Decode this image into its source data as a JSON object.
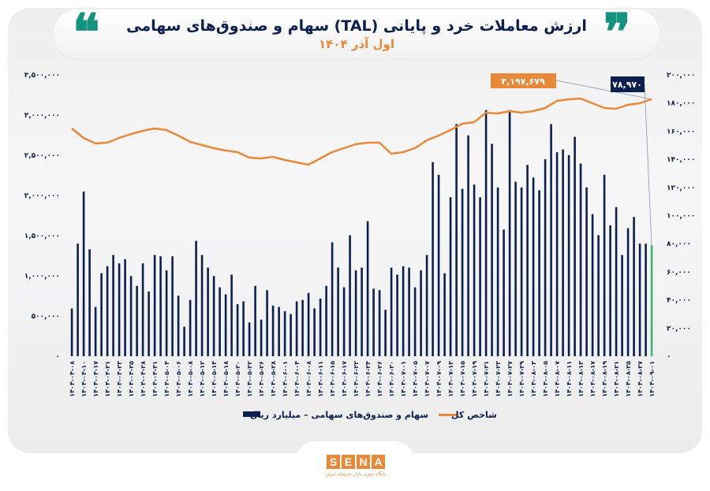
{
  "header": {
    "title": "ارزش معاملات خرد و پایانی (TAL) سهام و صندوق‌های سهامی",
    "subtitle": "اول آذر ۱۴۰۴",
    "quote_open": "❝",
    "quote_close": "❞"
  },
  "colors": {
    "bars": "#0d1f4f",
    "last_bar": "#3cb371",
    "line": "#e8893a",
    "accent": "#16937f"
  },
  "logo": {
    "text": "SENA",
    "tagline": "پایگاه خبری بازار سرمایه ایران"
  },
  "chart_data": {
    "type": "bar+line",
    "title": "ارزش معاملات خرد و پایانی (TAL) سهام و صندوق‌های سهامی",
    "subtitle": "اول آذر ۱۴۰۴",
    "categories": [
      "۱۴۰۴-۰۴-۰۸",
      "۱۴۰۴-۰۴-۱۰",
      "۱۴۰۴-۰۴-۱۷",
      "۱۴۰۴-۰۴-۲۱",
      "۱۴۰۴-۰۴-۲۳",
      "۱۴۰۴-۰۴-۲۵",
      "۱۴۰۴-۰۴-۲۸",
      "۱۴۰۴-۰۴-۳۱",
      "۱۴۰۴-۰۵-۰۴",
      "۱۴۰۴-۰۵-۰۶",
      "۱۴۰۴-۰۵-۰۸",
      "۱۴۰۴-۰۵-۱۲",
      "۱۴۰۴-۰۵-۱۴",
      "۱۴۰۴-۰۵-۱۸",
      "۱۴۰۴-۰۵-۲۰",
      "۱۴۰۴-۰۵-۲۲",
      "۱۴۰۴-۰۵-۲۶",
      "۱۴۰۴-۰۵-۲۸",
      "۱۴۰۴-۰۶-۰۱",
      "۱۴۰۴-۰۶-۰۴",
      "۱۴۰۴-۰۶-۰۸",
      "۱۴۰۴-۰۶-۱۱",
      "۱۴۰۴-۰۶-۱۵",
      "۱۴۰۴-۰۶-۱۷",
      "۱۴۰۴-۰۶-۲۲",
      "۱۴۰۴-۰۶-۲۴",
      "۱۴۰۴-۰۶-۲۶",
      "۱۴۰۴-۰۶-۳۰",
      "۱۴۰۴-۰۷-۰۱",
      "۱۴۰۴-۰۷-۰۵",
      "۱۴۰۴-۰۷-۰۷",
      "۱۴۰۴-۰۷-۰۹",
      "۱۴۰۴-۰۷-۱۳",
      "۱۴۰۴-۰۷-۱۵",
      "۱۴۰۴-۰۷-۱۹",
      "۱۴۰۴-۰۷-۲۱",
      "۱۴۰۴-۰۷-۲۳",
      "۱۴۰۴-۰۷-۲۷",
      "۱۴۰۴-۰۷-۲۹",
      "۱۴۰۴-۰۸-۰۳",
      "۱۴۰۴-۰۸-۰۵",
      "۱۴۰۴-۰۸-۰۷",
      "۱۴۰۴-۰۸-۱۱",
      "۱۴۰۴-۰۸-۱۳",
      "۱۴۰۴-۰۸-۱۷",
      "۱۴۰۴-۰۸-۱۹",
      "۱۴۰۴-۰۸-۲۱",
      "۱۴۰۴-۰۸-۲۵",
      "۱۴۰۴-۰۸-۲۷",
      "۱۴۰۴-۰۹-۰۱"
    ],
    "bar_series": {
      "name": "سهام و صندوق‌های سهامی – میلیارد ریال",
      "axis": "right",
      "values": [
        34000,
        80000,
        117000,
        76000,
        35000,
        59000,
        64000,
        72000,
        66000,
        69000,
        57000,
        50000,
        66000,
        46000,
        72000,
        71000,
        61000,
        71000,
        43000,
        21000,
        40000,
        82000,
        72000,
        63000,
        57000,
        49000,
        44000,
        58000,
        37000,
        39000,
        24000,
        50000,
        26000,
        47000,
        36000,
        35000,
        32000,
        30000,
        39000,
        40000,
        45000,
        34000,
        41000,
        50000,
        81000,
        63000,
        49000,
        86000,
        61000,
        63000,
        96000,
        48000,
        47000,
        33000,
        63000,
        58000,
        64000,
        63000,
        49000,
        61000,
        72000,
        138000,
        129000,
        59000,
        113000,
        165000,
        119000,
        157000,
        122000,
        113000,
        175000,
        151000,
        120000,
        90000,
        175000,
        124000,
        120000,
        136000,
        127000,
        118000,
        140000,
        165000,
        145000,
        147000,
        143000,
        156000,
        137000,
        120000,
        101000,
        86000,
        129000,
        93000,
        106000,
        72000,
        91000,
        99000,
        80000,
        80000,
        78970
      ]
    },
    "line_series": {
      "name": "شاخص کل",
      "axis": "left",
      "values": [
        2833000,
        2716000,
        2647000,
        2657000,
        2716000,
        2765000,
        2804000,
        2833000,
        2814000,
        2745000,
        2667000,
        2627000,
        2588000,
        2559000,
        2539000,
        2471000,
        2461000,
        2480000,
        2441000,
        2412000,
        2382000,
        2461000,
        2539000,
        2588000,
        2637000,
        2657000,
        2657000,
        2520000,
        2539000,
        2588000,
        2686000,
        2745000,
        2814000,
        2892000,
        2912000,
        3029000,
        3020000,
        3049000,
        3029000,
        3049000,
        3088000,
        3176000,
        3196000,
        3206000,
        3147000,
        3088000,
        3078000,
        3127000,
        3147000,
        3197679
      ]
    },
    "left_axis": {
      "ylim": [
        0,
        3500000
      ],
      "ticks": [
        "۰",
        "۵۰۰,۰۰۰",
        "۱,۰۰۰,۰۰۰",
        "۱,۵۰۰,۰۰۰",
        "۲,۰۰۰,۰۰۰",
        "۲,۵۰۰,۰۰۰",
        "۳,۰۰۰,۰۰۰",
        "۳,۵۰۰,۰۰۰"
      ]
    },
    "right_axis": {
      "ylim": [
        0,
        200000
      ],
      "ticks": [
        "۰",
        "۲۰,۰۰۰",
        "۴۰,۰۰۰",
        "۶۰,۰۰۰",
        "۸۰,۰۰۰",
        "۱۰۰,۰۰۰",
        "۱۲۰,۰۰۰",
        "۱۴۰,۰۰۰",
        "۱۶۰,۰۰۰",
        "۱۸۰,۰۰۰",
        "۲۰۰,۰۰۰"
      ]
    },
    "annotations": {
      "line_last": "۳,۱۹۷,۶۷۹",
      "bar_last": "۷۸,۹۷۰"
    },
    "legend": {
      "line": "شاخص کل",
      "bars": "سهام و صندوق‌های سهامی – میلیارد ریال",
      "placement": "bottom"
    },
    "grid": false
  }
}
